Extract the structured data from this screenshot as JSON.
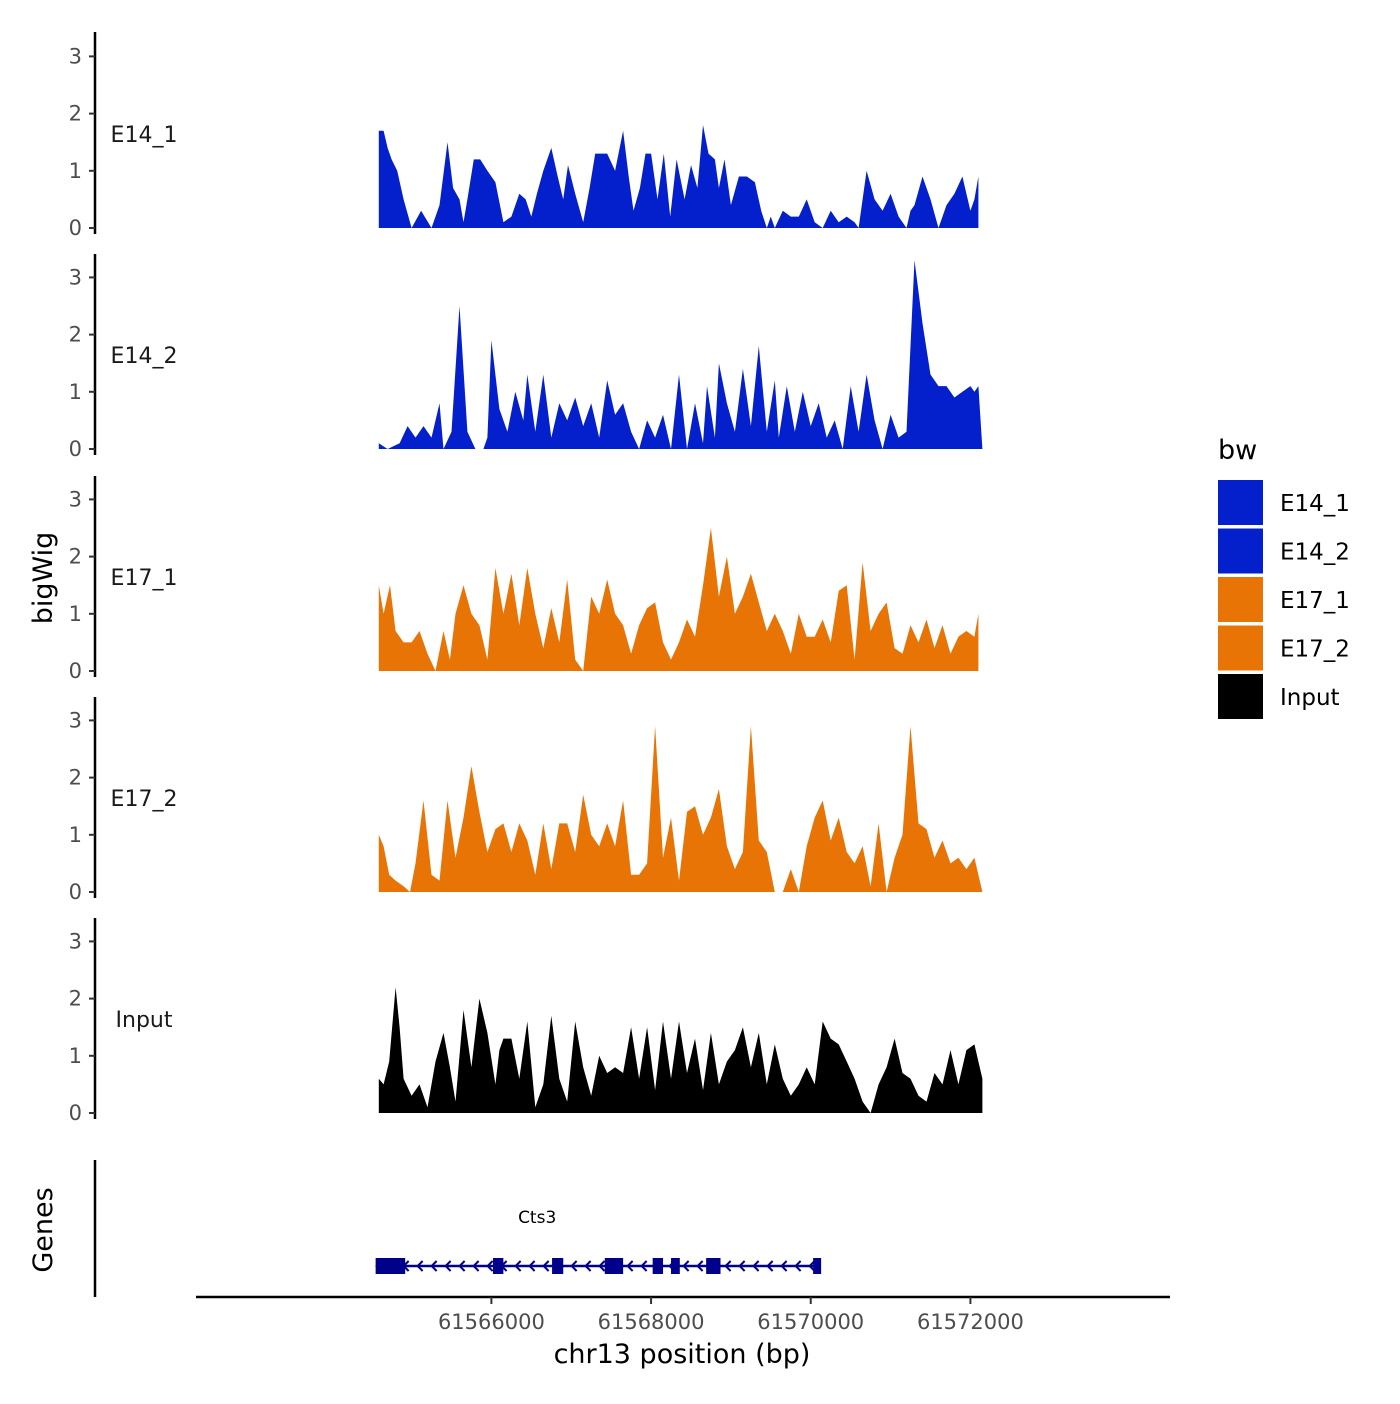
{
  "chart_data": {
    "type": "area",
    "title": "",
    "chromosome": "chr13",
    "xlabel": "chr13 position (bp)",
    "ylabel": "bigWig",
    "genes_ylabel": "Genes",
    "xlim": [
      61562300,
      61574500
    ],
    "x_ticks": [
      61566000,
      61568000,
      61570000,
      61572000
    ],
    "x_tick_labels": [
      "61566000",
      "61568000",
      "61570000",
      "61572000"
    ],
    "ylim": [
      0,
      3.4
    ],
    "y_ticks": [
      0,
      1,
      2,
      3
    ],
    "y_tick_labels": [
      "0",
      "1",
      "2",
      "3"
    ],
    "grid": false,
    "legend": {
      "title": "bw",
      "position": "right",
      "entries": [
        {
          "label": "E14_1",
          "color": "#0420CC"
        },
        {
          "label": "E14_2",
          "color": "#0420CC"
        },
        {
          "label": "E17_1",
          "color": "#E87406"
        },
        {
          "label": "E17_2",
          "color": "#E87406"
        },
        {
          "label": "Input",
          "color": "#000000"
        }
      ]
    },
    "tracks": [
      {
        "name": "E14_1",
        "color": "#0420CC",
        "x": [
          61564590,
          61564650,
          61564700,
          61564750,
          61564820,
          61564900,
          61565000,
          61565120,
          61565250,
          61565350,
          61565450,
          61565520,
          61565600,
          61565650,
          61565700,
          61565780,
          61565860,
          61565950,
          61566050,
          61566150,
          61566250,
          61566350,
          61566430,
          61566500,
          61566570,
          61566650,
          61566750,
          61566830,
          61566900,
          61566960,
          61567050,
          61567150,
          61567230,
          61567300,
          61567380,
          61567450,
          61567550,
          61567650,
          61567720,
          61567780,
          61567860,
          61567930,
          61568000,
          61568080,
          61568160,
          61568240,
          61568320,
          61568420,
          61568500,
          61568580,
          61568650,
          61568720,
          61568800,
          61568850,
          61568920,
          61569000,
          61569100,
          61569200,
          61569300,
          61569380,
          61569450,
          61569500,
          61569550,
          61569650,
          61569750,
          61569850,
          61569950,
          61570050,
          61570150,
          61570250,
          61570350,
          61570450,
          61570550,
          61570600,
          61570700,
          61570800,
          61570900,
          61571000,
          61571100,
          61571200,
          61571250,
          61571300,
          61571400,
          61571500,
          61571600,
          61571700,
          61571800,
          61571900,
          61572000,
          61572050,
          61572100
        ],
        "y": [
          1.7,
          1.7,
          1.4,
          1.2,
          1.0,
          0.5,
          0.0,
          0.3,
          0.0,
          0.4,
          1.5,
          0.7,
          0.5,
          0.1,
          0.5,
          1.2,
          1.2,
          1.0,
          0.8,
          0.1,
          0.2,
          0.6,
          0.5,
          0.2,
          0.6,
          1.0,
          1.4,
          0.9,
          0.5,
          1.1,
          0.6,
          0.1,
          0.7,
          1.3,
          1.3,
          1.3,
          1.0,
          1.7,
          0.9,
          0.3,
          0.7,
          1.3,
          1.3,
          0.5,
          1.3,
          0.2,
          1.2,
          0.5,
          1.1,
          0.7,
          1.8,
          1.3,
          1.2,
          0.7,
          1.2,
          0.4,
          0.9,
          0.9,
          0.8,
          0.3,
          0.0,
          0.2,
          0.0,
          0.3,
          0.2,
          0.2,
          0.5,
          0.1,
          0.0,
          0.3,
          0.1,
          0.2,
          0.1,
          0.0,
          1.0,
          0.5,
          0.3,
          0.6,
          0.2,
          0.0,
          0.3,
          0.4,
          0.9,
          0.5,
          0.0,
          0.4,
          0.6,
          0.9,
          0.3,
          0.5,
          0.9
        ]
      },
      {
        "name": "E14_2",
        "color": "#0420CC",
        "x": [
          61564590,
          61564700,
          61564850,
          61564950,
          61565050,
          61565150,
          61565250,
          61565350,
          61565400,
          61565500,
          61565600,
          61565700,
          61565800,
          61565900,
          61565950,
          61566000,
          61566100,
          61566200,
          61566300,
          61566400,
          61566450,
          61566550,
          61566650,
          61566750,
          61566850,
          61566950,
          61567050,
          61567150,
          61567250,
          61567350,
          61567450,
          61567550,
          61567650,
          61567750,
          61567850,
          61567950,
          61568050,
          61568150,
          61568250,
          61568350,
          61568450,
          61568550,
          61568650,
          61568700,
          61568800,
          61568850,
          61568950,
          61569050,
          61569150,
          61569250,
          61569350,
          61569450,
          61569550,
          61569600,
          61569700,
          61569800,
          61569900,
          61570000,
          61570100,
          61570200,
          61570300,
          61570400,
          61570500,
          61570600,
          61570700,
          61570800,
          61570900,
          61571000,
          61571100,
          61571200,
          61571300,
          61571400,
          61571500,
          61571600,
          61571700,
          61571800,
          61571900,
          61572000,
          61572050,
          61572100,
          61572150
        ],
        "y": [
          0.1,
          0.0,
          0.1,
          0.4,
          0.2,
          0.4,
          0.2,
          0.8,
          0.0,
          0.3,
          2.5,
          0.3,
          0.0,
          0.0,
          0.2,
          1.9,
          0.7,
          0.3,
          1.0,
          0.5,
          1.3,
          0.3,
          1.3,
          0.2,
          0.8,
          0.5,
          0.9,
          0.4,
          0.8,
          0.2,
          1.2,
          0.6,
          0.8,
          0.3,
          0.0,
          0.5,
          0.2,
          0.6,
          0.0,
          1.3,
          0.0,
          0.8,
          0.1,
          1.1,
          0.2,
          1.5,
          0.8,
          0.3,
          1.4,
          0.4,
          1.8,
          0.3,
          1.2,
          0.2,
          1.1,
          0.3,
          1.0,
          0.4,
          0.8,
          0.2,
          0.5,
          0.0,
          1.1,
          0.3,
          1.3,
          0.5,
          0.0,
          0.6,
          0.2,
          0.3,
          3.3,
          2.2,
          1.3,
          1.1,
          1.1,
          0.9,
          1.0,
          1.1,
          1.0,
          1.1,
          0.0
        ]
      },
      {
        "name": "E17_1",
        "color": "#E87406",
        "x": [
          61564590,
          61564650,
          61564730,
          61564800,
          61564900,
          61565000,
          61565100,
          61565200,
          61565300,
          61565400,
          61565480,
          61565550,
          61565650,
          61565750,
          61565850,
          61565950,
          61566050,
          61566150,
          61566250,
          61566350,
          61566450,
          61566550,
          61566650,
          61566750,
          61566850,
          61566950,
          61567050,
          61567150,
          61567250,
          61567350,
          61567450,
          61567550,
          61567650,
          61567750,
          61567850,
          61567950,
          61568050,
          61568150,
          61568250,
          61568350,
          61568450,
          61568550,
          61568650,
          61568750,
          61568850,
          61568950,
          61569050,
          61569150,
          61569250,
          61569350,
          61569450,
          61569550,
          61569650,
          61569750,
          61569850,
          61569950,
          61570050,
          61570150,
          61570250,
          61570350,
          61570450,
          61570550,
          61570650,
          61570750,
          61570850,
          61570950,
          61571050,
          61571150,
          61571250,
          61571350,
          61571450,
          61571550,
          61571650,
          61571750,
          61571850,
          61571950,
          61572050,
          61572100
        ],
        "y": [
          1.5,
          1.0,
          1.5,
          0.7,
          0.5,
          0.5,
          0.7,
          0.3,
          0.0,
          0.7,
          0.2,
          1.0,
          1.5,
          1.0,
          0.8,
          0.2,
          1.8,
          1.0,
          1.7,
          0.8,
          1.8,
          1.0,
          0.4,
          1.1,
          0.5,
          1.6,
          0.2,
          0.0,
          1.3,
          1.0,
          1.6,
          1.0,
          0.8,
          0.3,
          0.8,
          1.1,
          1.2,
          0.5,
          0.2,
          0.5,
          0.9,
          0.6,
          1.5,
          2.5,
          1.3,
          2.0,
          1.0,
          1.3,
          1.7,
          1.2,
          0.7,
          1.0,
          0.7,
          0.3,
          1.0,
          0.6,
          0.6,
          0.9,
          0.5,
          1.4,
          1.5,
          0.2,
          1.9,
          0.7,
          1.0,
          1.2,
          0.4,
          0.3,
          0.8,
          0.5,
          0.9,
          0.4,
          0.8,
          0.3,
          0.6,
          0.7,
          0.6,
          1.0
        ]
      },
      {
        "name": "E17_2",
        "color": "#E87406",
        "x": [
          61564590,
          61564650,
          61564720,
          61564800,
          61564900,
          61564980,
          61565050,
          61565150,
          61565250,
          61565350,
          61565450,
          61565550,
          61565650,
          61565750,
          61565850,
          61565950,
          61566050,
          61566150,
          61566250,
          61566350,
          61566450,
          61566550,
          61566650,
          61566750,
          61566850,
          61566950,
          61567050,
          61567150,
          61567250,
          61567350,
          61567450,
          61567550,
          61567650,
          61567750,
          61567850,
          61567950,
          61568050,
          61568150,
          61568250,
          61568350,
          61568450,
          61568550,
          61568650,
          61568750,
          61568850,
          61568950,
          61569050,
          61569150,
          61569250,
          61569350,
          61569450,
          61569550,
          61569650,
          61569750,
          61569850,
          61569950,
          61570050,
          61570150,
          61570250,
          61570350,
          61570450,
          61570550,
          61570650,
          61570750,
          61570850,
          61570950,
          61571050,
          61571150,
          61571250,
          61571350,
          61571450,
          61571550,
          61571650,
          61571750,
          61571850,
          61571950,
          61572050,
          61572150
        ],
        "y": [
          1.0,
          0.8,
          0.3,
          0.2,
          0.1,
          0.0,
          0.5,
          1.6,
          0.3,
          0.2,
          1.6,
          0.6,
          1.3,
          2.2,
          1.4,
          0.7,
          1.1,
          1.2,
          0.7,
          1.2,
          0.9,
          0.3,
          1.2,
          0.4,
          1.2,
          1.2,
          0.7,
          1.7,
          1.0,
          0.8,
          1.2,
          0.8,
          1.6,
          0.3,
          0.3,
          0.5,
          2.9,
          0.6,
          1.3,
          0.2,
          1.4,
          1.5,
          1.0,
          1.3,
          1.8,
          0.8,
          0.4,
          0.7,
          2.9,
          0.9,
          0.7,
          0.0,
          0.0,
          0.4,
          0.0,
          0.8,
          1.3,
          1.6,
          0.9,
          1.3,
          0.7,
          0.5,
          0.8,
          0.1,
          1.2,
          0.0,
          0.6,
          1.0,
          2.9,
          1.2,
          1.1,
          0.6,
          0.9,
          0.5,
          0.6,
          0.4,
          0.6,
          0.0
        ]
      },
      {
        "name": "Input",
        "color": "#000000",
        "x": [
          61564590,
          61564650,
          61564720,
          61564800,
          61564850,
          61564900,
          61565000,
          61565100,
          61565200,
          61565300,
          61565400,
          61565480,
          61565550,
          61565650,
          61565750,
          61565850,
          61565950,
          61566050,
          61566100,
          61566150,
          61566250,
          61566350,
          61566450,
          61566550,
          61566650,
          61566750,
          61566850,
          61566950,
          61567050,
          61567150,
          61567250,
          61567350,
          61567450,
          61567550,
          61567650,
          61567750,
          61567850,
          61567950,
          61568050,
          61568150,
          61568250,
          61568350,
          61568450,
          61568550,
          61568650,
          61568750,
          61568850,
          61568950,
          61569050,
          61569150,
          61569250,
          61569350,
          61569450,
          61569550,
          61569650,
          61569750,
          61569850,
          61569950,
          61570050,
          61570150,
          61570250,
          61570350,
          61570450,
          61570550,
          61570650,
          61570750,
          61570850,
          61570950,
          61571050,
          61571150,
          61571250,
          61571350,
          61571450,
          61571550,
          61571650,
          61571750,
          61571850,
          61571950,
          61572050,
          61572150
        ],
        "y": [
          0.6,
          0.5,
          0.9,
          2.2,
          1.5,
          0.6,
          0.3,
          0.5,
          0.1,
          0.9,
          1.4,
          0.8,
          0.2,
          1.8,
          0.8,
          2.0,
          1.4,
          0.5,
          1.1,
          1.3,
          1.3,
          0.6,
          1.6,
          0.1,
          0.5,
          1.7,
          0.6,
          0.2,
          1.6,
          0.8,
          0.3,
          1.0,
          0.7,
          0.8,
          0.7,
          1.5,
          0.6,
          1.5,
          0.4,
          1.6,
          0.6,
          1.6,
          0.7,
          1.3,
          0.4,
          1.4,
          0.5,
          0.9,
          1.1,
          1.5,
          0.8,
          1.4,
          0.5,
          1.2,
          0.6,
          0.3,
          0.5,
          0.8,
          0.5,
          1.6,
          1.3,
          1.2,
          0.9,
          0.6,
          0.2,
          0.0,
          0.5,
          0.8,
          1.3,
          0.7,
          0.6,
          0.3,
          0.2,
          0.7,
          0.5,
          1.1,
          0.5,
          1.1,
          1.2,
          0.6
        ]
      }
    ],
    "genes": [
      {
        "name": "Cts3",
        "strand": "-",
        "start": 61564550,
        "end": 61570100,
        "exons": [
          [
            61564550,
            61564920
          ],
          [
            61566020,
            61566150
          ],
          [
            61566760,
            61566900
          ],
          [
            61567420,
            61567650
          ],
          [
            61568020,
            61568150
          ],
          [
            61568250,
            61568360
          ],
          [
            61568690,
            61568870
          ],
          [
            61570030,
            61570100
          ]
        ]
      }
    ]
  }
}
